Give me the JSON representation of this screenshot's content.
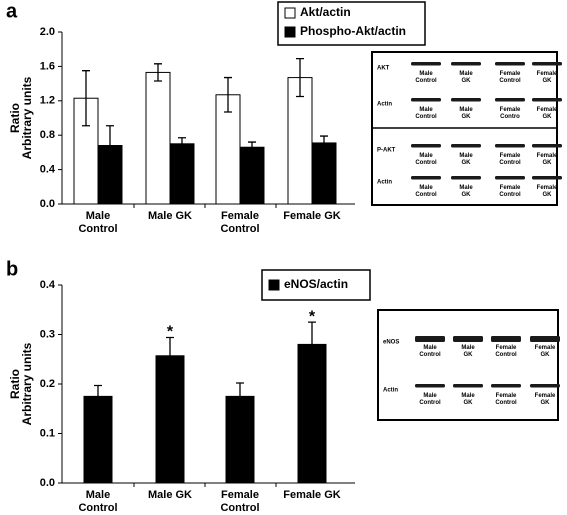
{
  "panel_labels": [
    "a",
    "b"
  ],
  "chart_data": [
    {
      "type": "bar",
      "y_label": "Ratio\nArbitrary units",
      "categories": [
        "Male\nControl",
        "Male GK",
        "Female\nControl",
        "Female GK"
      ],
      "series": [
        {
          "name": "Akt/actin",
          "color": "#ffffff",
          "values": [
            1.23,
            1.53,
            1.27,
            1.47
          ],
          "errors": [
            0.32,
            0.1,
            0.2,
            0.22
          ]
        },
        {
          "name": "Phospho-Akt/actin",
          "color": "#000000",
          "values": [
            0.68,
            0.7,
            0.66,
            0.71
          ],
          "errors": [
            0.23,
            0.07,
            0.06,
            0.08
          ]
        }
      ],
      "ylim": [
        0,
        2
      ],
      "yticks": [
        {
          "value": 0,
          "label": "0.0"
        },
        0.4,
        0.8,
        1.2,
        1.6,
        {
          "value": 2,
          "label": "2.0"
        }
      ]
    },
    {
      "type": "bar",
      "y_label": "Ratio\nArbitrary units",
      "categories": [
        "Male\nControl",
        "Male GK",
        "Female\nControl",
        "Female GK"
      ],
      "series": [
        {
          "name": "eNOS/actin",
          "color": "#000000",
          "values": [
            0.175,
            0.257,
            0.175,
            0.28
          ],
          "errors": [
            0.022,
            0.037,
            0.027,
            0.045
          ]
        }
      ],
      "ylim": [
        0,
        0.4
      ],
      "yticks": [
        {
          "value": 0,
          "label": "0.0"
        },
        0.1,
        0.2,
        0.3,
        0.4
      ],
      "annotations": [
        {
          "text": "*",
          "x": "Male GK"
        },
        {
          "text": "*",
          "x": "Female GK"
        }
      ]
    }
  ],
  "blots": [
    {
      "rows": [
        {
          "label": "AKT",
          "lanes": [
            "Male\nControl",
            "Male\nGK",
            "Female\nControl",
            "Female\nGK"
          ]
        },
        {
          "label": "Actin",
          "lanes": [
            "Male\nControl",
            "Male\nGK",
            "Female\nContro",
            "Female\nGK"
          ]
        },
        {
          "label": "P-AKT",
          "lanes": [
            "Male\nControl",
            "Male\nGK",
            "Female\nControl",
            "Female\nGK"
          ]
        },
        {
          "label": "Actin",
          "lanes": [
            "Male\nControl",
            "Male\nGK",
            "Female\nControl",
            "Female\nGK"
          ]
        }
      ]
    },
    {
      "rows": [
        {
          "label": "eNOS",
          "lanes": [
            "Male\nControl",
            "Male\nGK",
            "Female\nControl",
            "Female\nGK"
          ]
        },
        {
          "label": "Actin",
          "lanes": [
            "Male\nControl",
            "Male\nGK",
            "Female\nControl",
            "Female\nGK"
          ]
        }
      ]
    }
  ]
}
